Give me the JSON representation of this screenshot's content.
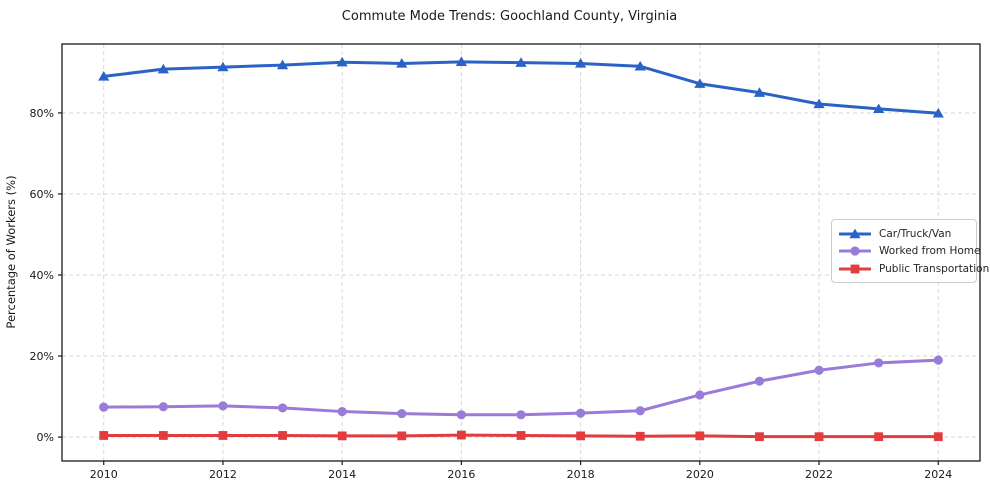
{
  "chart_data": {
    "type": "line",
    "title": "Commute Mode Trends: Goochland County, Virginia",
    "xlabel": "",
    "ylabel": "Percentage of Workers (%)",
    "x": [
      2010,
      2011,
      2012,
      2013,
      2014,
      2015,
      2016,
      2017,
      2018,
      2019,
      2020,
      2021,
      2022,
      2023,
      2024
    ],
    "series": [
      {
        "name": "Car/Truck/Van",
        "color": "#2a62c5",
        "marker": "triangle-up",
        "values": [
          89.0,
          90.8,
          91.3,
          91.8,
          92.5,
          92.2,
          92.6,
          92.4,
          92.2,
          91.5,
          87.2,
          85.0,
          82.2,
          81.0,
          79.9
        ]
      },
      {
        "name": "Worked from Home",
        "color": "#9a7bd8",
        "marker": "circle",
        "values": [
          7.4,
          7.5,
          7.7,
          7.2,
          6.3,
          5.8,
          5.5,
          5.5,
          5.9,
          6.5,
          10.4,
          13.8,
          16.5,
          18.3,
          19.0
        ]
      },
      {
        "name": "Public Transportation",
        "color": "#e23c3f",
        "marker": "square",
        "values": [
          0.4,
          0.4,
          0.4,
          0.4,
          0.3,
          0.3,
          0.5,
          0.4,
          0.3,
          0.2,
          0.3,
          0.1,
          0.1,
          0.1,
          0.1
        ]
      }
    ],
    "x_ticks": [
      {
        "value": 2010,
        "label": "2010"
      },
      {
        "value": 2012,
        "label": "2012"
      },
      {
        "value": 2014,
        "label": "2014"
      },
      {
        "value": 2016,
        "label": "2016"
      },
      {
        "value": 2018,
        "label": "2018"
      },
      {
        "value": 2020,
        "label": "2020"
      },
      {
        "value": 2022,
        "label": "2022"
      },
      {
        "value": 2024,
        "label": "2024"
      }
    ],
    "y_ticks": [
      {
        "value": 0,
        "label": "0%"
      },
      {
        "value": 20,
        "label": "20%"
      },
      {
        "value": 40,
        "label": "40%"
      },
      {
        "value": 60,
        "label": "60%"
      },
      {
        "value": 80,
        "label": "80%"
      }
    ],
    "xlim": [
      2009.3,
      2024.7
    ],
    "ylim": [
      -5.9,
      97.0
    ],
    "grid": true,
    "grid_style": "dashed",
    "legend_position": "center right",
    "colors": {
      "grid": "#d8d8d8",
      "frame": "#1a1a1a",
      "tick_text": "#1a1a1a",
      "background": "#ffffff"
    }
  }
}
